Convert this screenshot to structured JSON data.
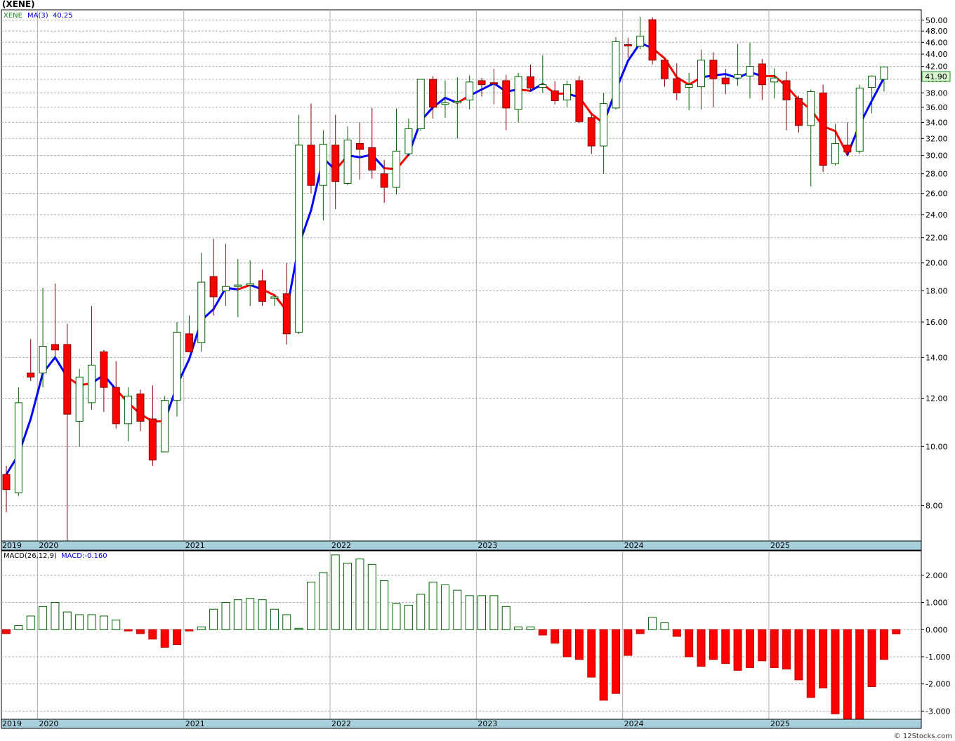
{
  "title": "(XENE)",
  "legend": {
    "symbol": "XENE",
    "ma_label": "MA(3)",
    "ma_value": "40.25"
  },
  "last_price_badge": "41.90",
  "macd_legend": {
    "params": "MACD(26,12,9)",
    "value": "MACD:-0.160"
  },
  "watermark": "© 12Stocks.com",
  "colors": {
    "up_candle": "#006400",
    "down_candle": "#ff0000",
    "ma_up": "#0000ff",
    "ma_down": "#ff0000",
    "grid": "#b0b0b0",
    "axis_band": "#a8d0dc"
  },
  "chart_data": [
    {
      "type": "candlestick",
      "interval": "monthly",
      "y_scale": "log",
      "ylim": [
        7.0,
        52.0
      ],
      "y_ticks": [
        "8.00",
        "10.00",
        "12.00",
        "14.00",
        "16.00",
        "18.00",
        "20.00",
        "22.00",
        "24.00",
        "26.00",
        "28.00",
        "30.00",
        "32.00",
        "34.00",
        "36.00",
        "38.00",
        "40.00",
        "42.00",
        "44.00",
        "46.00",
        "48.00",
        "50.00"
      ],
      "year_labels": [
        "2019",
        "2020",
        "2021",
        "2022",
        "2023",
        "2024",
        "2025"
      ],
      "ma_label": "MA(3)",
      "ma_last": 40.25,
      "candles": [
        {
          "o": 9.0,
          "h": 9.3,
          "l": 7.8,
          "c": 8.5
        },
        {
          "o": 8.4,
          "h": 12.5,
          "l": 8.3,
          "c": 11.8
        },
        {
          "o": 13.2,
          "h": 15.0,
          "l": 12.8,
          "c": 13.0
        },
        {
          "o": 13.2,
          "h": 18.2,
          "l": 12.5,
          "c": 14.6
        },
        {
          "o": 14.7,
          "h": 18.5,
          "l": 14.0,
          "c": 14.4
        },
        {
          "o": 14.7,
          "h": 15.9,
          "l": 7.0,
          "c": 11.3
        },
        {
          "o": 11.0,
          "h": 13.4,
          "l": 10.0,
          "c": 13.0
        },
        {
          "o": 11.8,
          "h": 17.0,
          "l": 11.5,
          "c": 13.6
        },
        {
          "o": 14.3,
          "h": 14.4,
          "l": 11.4,
          "c": 12.5
        },
        {
          "o": 12.5,
          "h": 13.8,
          "l": 10.7,
          "c": 10.9
        },
        {
          "o": 10.9,
          "h": 12.5,
          "l": 10.2,
          "c": 12.1
        },
        {
          "o": 12.2,
          "h": 12.4,
          "l": 10.6,
          "c": 11.0
        },
        {
          "o": 11.1,
          "h": 12.6,
          "l": 9.3,
          "c": 9.5
        },
        {
          "o": 9.8,
          "h": 12.1,
          "l": 9.8,
          "c": 11.9
        },
        {
          "o": 11.9,
          "h": 16.0,
          "l": 11.2,
          "c": 15.4
        },
        {
          "o": 15.3,
          "h": 16.4,
          "l": 14.5,
          "c": 14.3
        },
        {
          "o": 14.8,
          "h": 20.8,
          "l": 14.3,
          "c": 18.6
        },
        {
          "o": 19.0,
          "h": 21.9,
          "l": 16.4,
          "c": 17.6
        },
        {
          "o": 18.0,
          "h": 21.5,
          "l": 17.0,
          "c": 18.3
        },
        {
          "o": 18.4,
          "h": 20.3,
          "l": 16.3,
          "c": 18.4
        },
        {
          "o": 18.4,
          "h": 20.2,
          "l": 17.0,
          "c": 18.5
        },
        {
          "o": 18.7,
          "h": 19.5,
          "l": 17.0,
          "c": 17.3
        },
        {
          "o": 17.5,
          "h": 17.7,
          "l": 17.0,
          "c": 17.6
        },
        {
          "o": 17.8,
          "h": 20.0,
          "l": 14.7,
          "c": 15.3
        },
        {
          "o": 15.4,
          "h": 35.0,
          "l": 15.3,
          "c": 31.2
        },
        {
          "o": 31.2,
          "h": 36.5,
          "l": 26.0,
          "c": 26.8
        },
        {
          "o": 26.8,
          "h": 33.0,
          "l": 23.5,
          "c": 31.3
        },
        {
          "o": 31.2,
          "h": 35.0,
          "l": 24.5,
          "c": 27.2
        },
        {
          "o": 27.0,
          "h": 33.5,
          "l": 26.8,
          "c": 31.8
        },
        {
          "o": 31.4,
          "h": 34.0,
          "l": 27.4,
          "c": 30.7
        },
        {
          "o": 30.9,
          "h": 35.9,
          "l": 27.5,
          "c": 28.4
        },
        {
          "o": 28.0,
          "h": 29.5,
          "l": 25.1,
          "c": 26.6
        },
        {
          "o": 26.6,
          "h": 35.8,
          "l": 25.9,
          "c": 30.5
        },
        {
          "o": 30.2,
          "h": 34.5,
          "l": 30.0,
          "c": 33.2
        },
        {
          "o": 33.2,
          "h": 40.0,
          "l": 32.9,
          "c": 40.0
        },
        {
          "o": 40.0,
          "h": 40.5,
          "l": 34.5,
          "c": 36.0
        },
        {
          "o": 36.4,
          "h": 39.8,
          "l": 34.6,
          "c": 36.6
        },
        {
          "o": 36.6,
          "h": 40.3,
          "l": 32.0,
          "c": 36.8
        },
        {
          "o": 37.0,
          "h": 40.6,
          "l": 35.7,
          "c": 39.6
        },
        {
          "o": 39.8,
          "h": 40.2,
          "l": 37.5,
          "c": 39.2
        },
        {
          "o": 39.5,
          "h": 41.6,
          "l": 36.4,
          "c": 39.4
        },
        {
          "o": 39.8,
          "h": 40.7,
          "l": 33.0,
          "c": 35.9
        },
        {
          "o": 35.7,
          "h": 41.0,
          "l": 34.0,
          "c": 40.4
        },
        {
          "o": 40.4,
          "h": 42.3,
          "l": 38.3,
          "c": 38.7
        },
        {
          "o": 38.8,
          "h": 43.8,
          "l": 38.0,
          "c": 39.2
        },
        {
          "o": 38.3,
          "h": 39.7,
          "l": 36.4,
          "c": 36.9
        },
        {
          "o": 37.0,
          "h": 39.8,
          "l": 36.0,
          "c": 39.2
        },
        {
          "o": 39.8,
          "h": 40.5,
          "l": 33.9,
          "c": 34.1
        },
        {
          "o": 34.6,
          "h": 35.2,
          "l": 30.2,
          "c": 31.1
        },
        {
          "o": 31.1,
          "h": 38.0,
          "l": 28.0,
          "c": 36.5
        },
        {
          "o": 35.9,
          "h": 46.9,
          "l": 35.7,
          "c": 46.1
        },
        {
          "o": 45.6,
          "h": 46.8,
          "l": 43.4,
          "c": 45.4
        },
        {
          "o": 45.3,
          "h": 50.7,
          "l": 44.8,
          "c": 47.1
        },
        {
          "o": 50.1,
          "h": 50.6,
          "l": 42.3,
          "c": 43.0
        },
        {
          "o": 43.0,
          "h": 43.4,
          "l": 38.9,
          "c": 40.1
        },
        {
          "o": 40.1,
          "h": 42.5,
          "l": 37.0,
          "c": 38.0
        },
        {
          "o": 38.8,
          "h": 41.0,
          "l": 35.6,
          "c": 39.2
        },
        {
          "o": 38.9,
          "h": 44.7,
          "l": 35.7,
          "c": 43.0
        },
        {
          "o": 43.0,
          "h": 44.3,
          "l": 36.0,
          "c": 40.1
        },
        {
          "o": 40.2,
          "h": 41.6,
          "l": 37.8,
          "c": 39.3
        },
        {
          "o": 40.2,
          "h": 45.7,
          "l": 39.0,
          "c": 40.7
        },
        {
          "o": 40.5,
          "h": 45.9,
          "l": 37.2,
          "c": 42.0
        },
        {
          "o": 42.4,
          "h": 43.2,
          "l": 37.0,
          "c": 39.2
        },
        {
          "o": 39.6,
          "h": 41.7,
          "l": 37.2,
          "c": 40.2
        },
        {
          "o": 39.8,
          "h": 41.2,
          "l": 33.0,
          "c": 37.0
        },
        {
          "o": 37.2,
          "h": 37.6,
          "l": 32.7,
          "c": 33.6
        },
        {
          "o": 33.6,
          "h": 38.5,
          "l": 26.7,
          "c": 38.2
        },
        {
          "o": 38.0,
          "h": 39.2,
          "l": 28.2,
          "c": 28.9
        },
        {
          "o": 29.1,
          "h": 33.8,
          "l": 28.9,
          "c": 31.4
        },
        {
          "o": 31.2,
          "h": 34.0,
          "l": 29.9,
          "c": 30.4
        },
        {
          "o": 30.5,
          "h": 39.2,
          "l": 30.2,
          "c": 38.7
        },
        {
          "o": 38.8,
          "h": 40.6,
          "l": 35.2,
          "c": 40.5
        },
        {
          "o": 40.0,
          "h": 41.9,
          "l": 38.2,
          "c": 41.9
        }
      ],
      "ma": [
        9.0,
        9.7,
        11.1,
        13.2,
        14.0,
        13.0,
        12.6,
        12.7,
        13.1,
        12.4,
        11.8,
        11.3,
        11.0,
        11.0,
        12.6,
        13.9,
        16.1,
        16.8,
        18.2,
        18.1,
        18.4,
        18.1,
        17.7,
        16.7,
        21.4,
        24.4,
        29.7,
        28.4,
        30.0,
        29.8,
        30.1,
        28.6,
        28.5,
        30.1,
        34.2,
        36.0,
        37.3,
        36.6,
        37.6,
        38.5,
        39.4,
        38.2,
        38.5,
        38.3,
        39.3,
        37.9,
        37.9,
        37.4,
        35.1,
        33.9,
        38.4,
        42.9,
        45.9,
        45.0,
        43.3,
        40.3,
        39.2,
        40.3,
        40.6,
        40.8,
        40.2,
        41.1,
        40.5,
        40.5,
        39.0,
        37.0,
        35.7,
        33.5,
        32.9,
        30.1,
        33.7,
        36.9,
        40.25
      ],
      "ma_color": [
        "up",
        "up",
        "up",
        "up",
        "up",
        "down",
        "down",
        "up",
        "up",
        "down",
        "down",
        "down",
        "down",
        "up",
        "up",
        "up",
        "up",
        "up",
        "up",
        "down",
        "up",
        "down",
        "down",
        "up",
        "up",
        "up",
        "up",
        "down",
        "up",
        "up",
        "up",
        "down",
        "down",
        "up",
        "up",
        "up",
        "up",
        "down",
        "up",
        "up",
        "up",
        "up",
        "down",
        "up",
        "down",
        "down",
        "up",
        "down",
        "down",
        "up",
        "up",
        "up",
        "up",
        "down",
        "down",
        "down",
        "down",
        "up",
        "up",
        "up",
        "up",
        "up",
        "down",
        "down",
        "down",
        "down",
        "down",
        "down",
        "down",
        "up",
        "up",
        "up",
        "up"
      ]
    },
    {
      "type": "bar",
      "name": "MACD(26,12,9)",
      "value_label": "MACD:-0.160",
      "ylim": [
        -3.3,
        2.9
      ],
      "y_ticks": [
        "2.000",
        "1.000",
        "0.000",
        "-1.000",
        "-2.000",
        "-3.000"
      ],
      "values": [
        -0.15,
        0.15,
        0.5,
        0.85,
        1.0,
        0.65,
        0.55,
        0.55,
        0.5,
        0.35,
        -0.05,
        -0.15,
        -0.35,
        -0.65,
        -0.55,
        -0.05,
        0.1,
        0.75,
        1.0,
        1.1,
        1.15,
        1.1,
        0.75,
        0.55,
        0.05,
        1.75,
        2.1,
        2.75,
        2.45,
        2.6,
        2.4,
        1.8,
        0.95,
        0.9,
        1.3,
        1.75,
        1.65,
        1.45,
        1.25,
        1.25,
        1.25,
        0.85,
        0.1,
        0.1,
        -0.2,
        -0.5,
        -1.0,
        -1.1,
        -1.75,
        -2.6,
        -2.35,
        -0.95,
        -0.15,
        0.45,
        0.25,
        -0.25,
        -1.0,
        -1.35,
        -1.1,
        -1.25,
        -1.5,
        -1.4,
        -1.15,
        -1.4,
        -1.45,
        -1.85,
        -2.5,
        -2.15,
        -3.1,
        -3.3,
        -3.3,
        -2.1,
        -1.1,
        -0.16
      ]
    }
  ]
}
